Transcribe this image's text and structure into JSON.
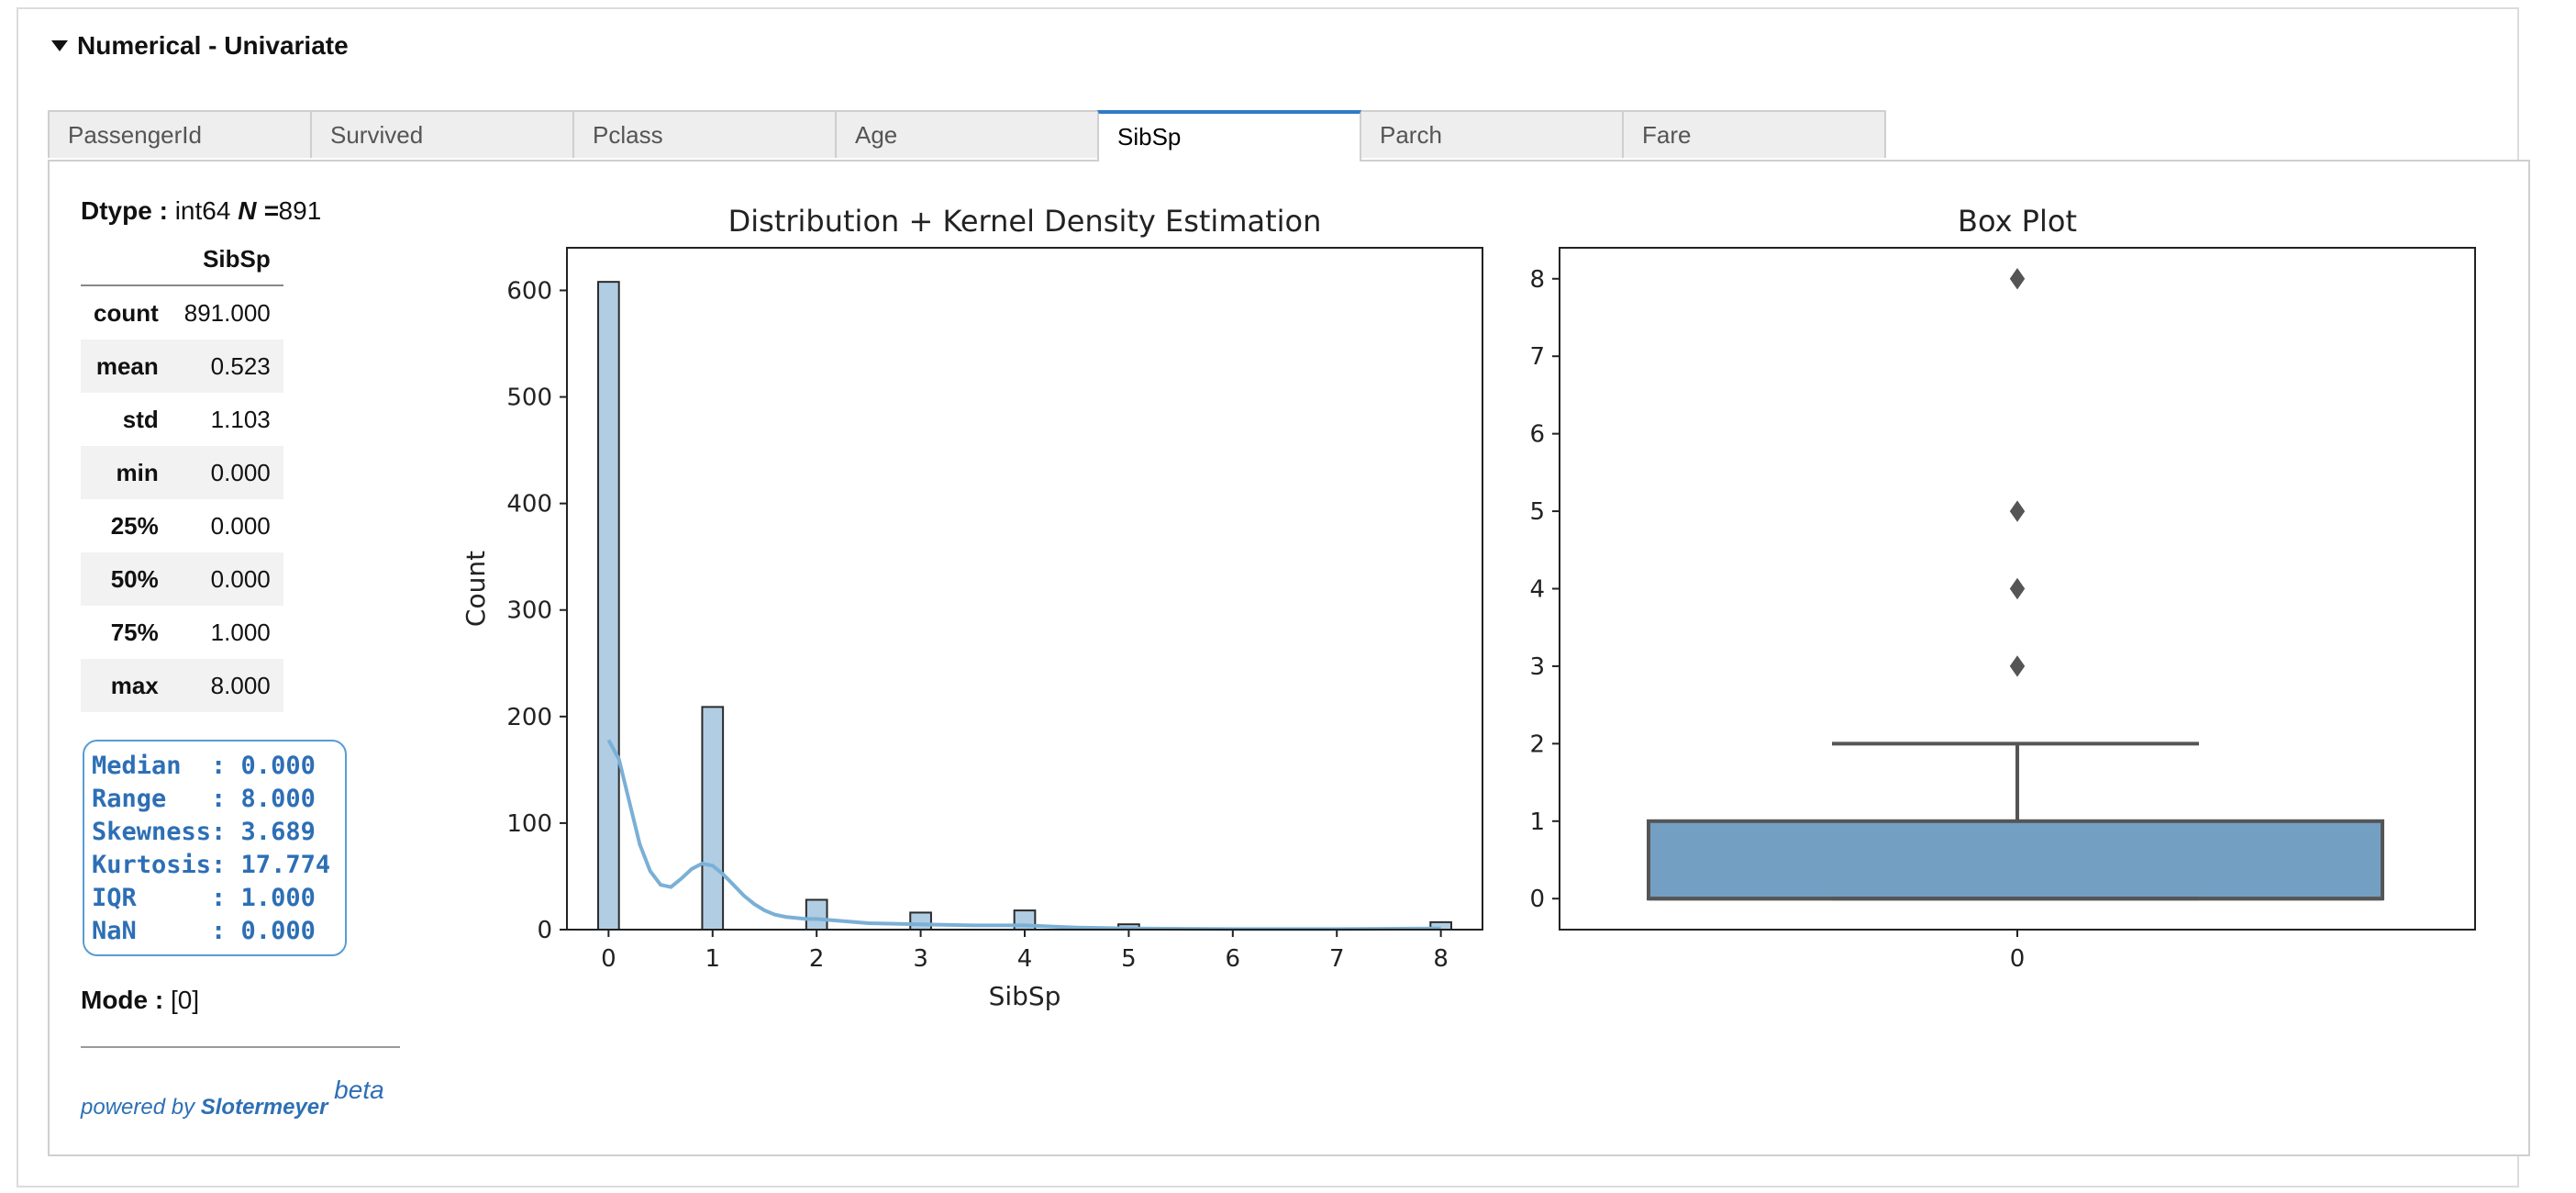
{
  "section": {
    "title": "Numerical - Univariate"
  },
  "tabs": [
    {
      "label": "PassengerId"
    },
    {
      "label": "Survived"
    },
    {
      "label": "Pclass"
    },
    {
      "label": "Age"
    },
    {
      "label": "SibSp"
    },
    {
      "label": "Parch"
    },
    {
      "label": "Fare"
    }
  ],
  "active_tab": "SibSp",
  "info": {
    "dtype_label": "Dtype :",
    "dtype_value": "int64",
    "n_label": "N =",
    "n_value": "891"
  },
  "stats": {
    "column": "SibSp",
    "rows": [
      {
        "label": "count",
        "value": "891.000"
      },
      {
        "label": "mean",
        "value": "0.523"
      },
      {
        "label": "std",
        "value": "1.103"
      },
      {
        "label": "min",
        "value": "0.000"
      },
      {
        "label": "25%",
        "value": "0.000"
      },
      {
        "label": "50%",
        "value": "0.000"
      },
      {
        "label": "75%",
        "value": "1.000"
      },
      {
        "label": "max",
        "value": "8.000"
      }
    ]
  },
  "summary": {
    "lines": [
      "Median  : 0.000",
      "Range   : 8.000",
      "Skewness: 3.689",
      "Kurtosis: 17.774",
      "IQR     : 1.000",
      "NaN     : 0.000"
    ]
  },
  "mode": {
    "label": "Mode :",
    "value": "[0]"
  },
  "footer": {
    "prefix": "powered by",
    "brand": "Slotermeyer",
    "tag": "beta"
  },
  "chart_data": [
    {
      "type": "bar",
      "title": "Distribution + Kernel Density Estimation",
      "xlabel": "SibSp",
      "ylabel": "Count",
      "xlim": [
        -0.4,
        8.4
      ],
      "ylim": [
        0,
        640
      ],
      "xticks": [
        0,
        1,
        2,
        3,
        4,
        5,
        6,
        7,
        8
      ],
      "yticks": [
        0,
        100,
        200,
        300,
        400,
        500,
        600
      ],
      "bar_width": 0.2,
      "bars": [
        {
          "x": 0,
          "value": 608
        },
        {
          "x": 1,
          "value": 209
        },
        {
          "x": 2,
          "value": 28
        },
        {
          "x": 3,
          "value": 16
        },
        {
          "x": 4,
          "value": 18
        },
        {
          "x": 5,
          "value": 5
        },
        {
          "x": 8,
          "value": 7
        }
      ],
      "kde": {
        "x": [
          0,
          0.1,
          0.2,
          0.3,
          0.4,
          0.5,
          0.6,
          0.7,
          0.8,
          0.9,
          1.0,
          1.1,
          1.2,
          1.3,
          1.4,
          1.5,
          1.6,
          1.7,
          1.8,
          1.9,
          2.0,
          2.5,
          3.0,
          3.5,
          4.0,
          4.5,
          5.0,
          6.0,
          7.0,
          8.0
        ],
        "y": [
          178,
          160,
          120,
          80,
          55,
          42,
          40,
          48,
          57,
          62,
          60,
          52,
          42,
          32,
          24,
          18,
          14,
          12,
          11,
          10,
          10,
          6,
          5,
          4,
          4,
          2,
          1,
          0.5,
          0.5,
          1
        ]
      },
      "colors": {
        "bar": "#b0cde3",
        "edge": "#2b2b2b",
        "kde": "#7ab0d6"
      }
    },
    {
      "type": "box",
      "title": "Box Plot",
      "xticks": [
        "0"
      ],
      "ylim": [
        -0.4,
        8.4
      ],
      "yticks": [
        0,
        1,
        2,
        3,
        4,
        5,
        6,
        7,
        8
      ],
      "q1": 0,
      "median": 0,
      "q3": 1,
      "whisker_low": 0,
      "whisker_high": 2,
      "outliers": [
        3,
        4,
        5,
        8
      ],
      "colors": {
        "box": "#739fc3",
        "line": "#555555"
      }
    }
  ]
}
